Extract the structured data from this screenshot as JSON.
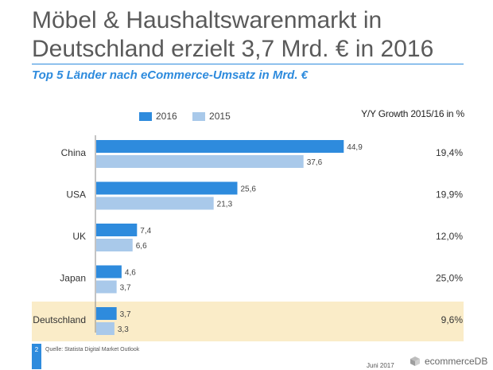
{
  "page": {
    "title": "Möbel & Haushaltswarenmarkt in Deutschland erzielt 3,7 Mrd. € in 2016",
    "subtitle": "Top 5 Länder nach eCommerce-Umsatz in Mrd. €",
    "growth_header": "Y/Y Growth 2015/16 in %",
    "page_number": "2",
    "source": "Quelle: Statista Digital Market Outlook",
    "date": "Juni 2017",
    "brand": "ecommerceDB"
  },
  "colors": {
    "series_2016": "#2e8bdd",
    "series_2015": "#a9c9ea",
    "highlight": "#faecc8",
    "title_rule": "#2e8bdd"
  },
  "chart_data": {
    "type": "bar",
    "orientation": "horizontal",
    "categories": [
      "China",
      "USA",
      "UK",
      "Japan",
      "Deutschland"
    ],
    "series": [
      {
        "name": "2016",
        "values": [
          44.9,
          25.6,
          7.4,
          4.6,
          3.7
        ],
        "labels": [
          "44,9",
          "25,6",
          "7,4",
          "4,6",
          "3,7"
        ]
      },
      {
        "name": "2015",
        "values": [
          37.6,
          21.3,
          6.6,
          3.7,
          3.3
        ],
        "labels": [
          "37,6",
          "21,3",
          "6,6",
          "3,7",
          "3,3"
        ]
      }
    ],
    "growth_labels": [
      "19,4%",
      "19,9%",
      "12,0%",
      "25,0%",
      "9,6%"
    ],
    "highlighted_category": "Deutschland",
    "xlim": [
      0,
      45
    ],
    "grid": false,
    "legend_position": "top-left"
  }
}
